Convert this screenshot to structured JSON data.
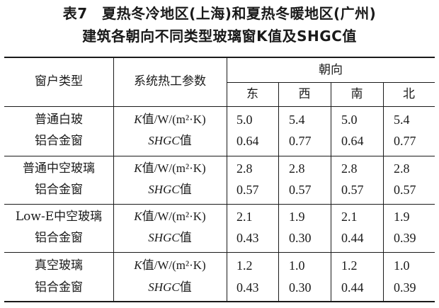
{
  "caption": {
    "line1": "表7　夏热冬冷地区(上海)和夏热冬暖地区(广州)",
    "line2": "建筑各朝向不同类型玻璃窗K值及SHGC值"
  },
  "header": {
    "window_type": "窗户类型",
    "thermal_params": "系统热工参数",
    "orientation": "朝向",
    "directions": [
      "东",
      "西",
      "南",
      "北"
    ]
  },
  "params": {
    "k_label": "K值/W/(m²·K)",
    "shgc_label": "SHGC值"
  },
  "rows": [
    {
      "type_line1": "普通白玻",
      "type_line2": "铝合金窗",
      "k": [
        "5.0",
        "5.4",
        "5.0",
        "5.4"
      ],
      "shgc": [
        "0.64",
        "0.77",
        "0.64",
        "0.77"
      ]
    },
    {
      "type_line1": "普通中空玻璃",
      "type_line2": "铝合金窗",
      "k": [
        "2.8",
        "2.8",
        "2.8",
        "2.8"
      ],
      "shgc": [
        "0.57",
        "0.57",
        "0.57",
        "0.57"
      ]
    },
    {
      "type_line1": "Low-E中空玻璃",
      "type_line2": "铝合金窗",
      "k": [
        "2.1",
        "1.9",
        "2.1",
        "1.9"
      ],
      "shgc": [
        "0.43",
        "0.30",
        "0.44",
        "0.39"
      ]
    },
    {
      "type_line1": "真空玻璃",
      "type_line2": "铝合金窗",
      "k": [
        "1.2",
        "1.0",
        "1.2",
        "1.0"
      ],
      "shgc": [
        "0.43",
        "0.30",
        "0.44",
        "0.39"
      ]
    }
  ]
}
